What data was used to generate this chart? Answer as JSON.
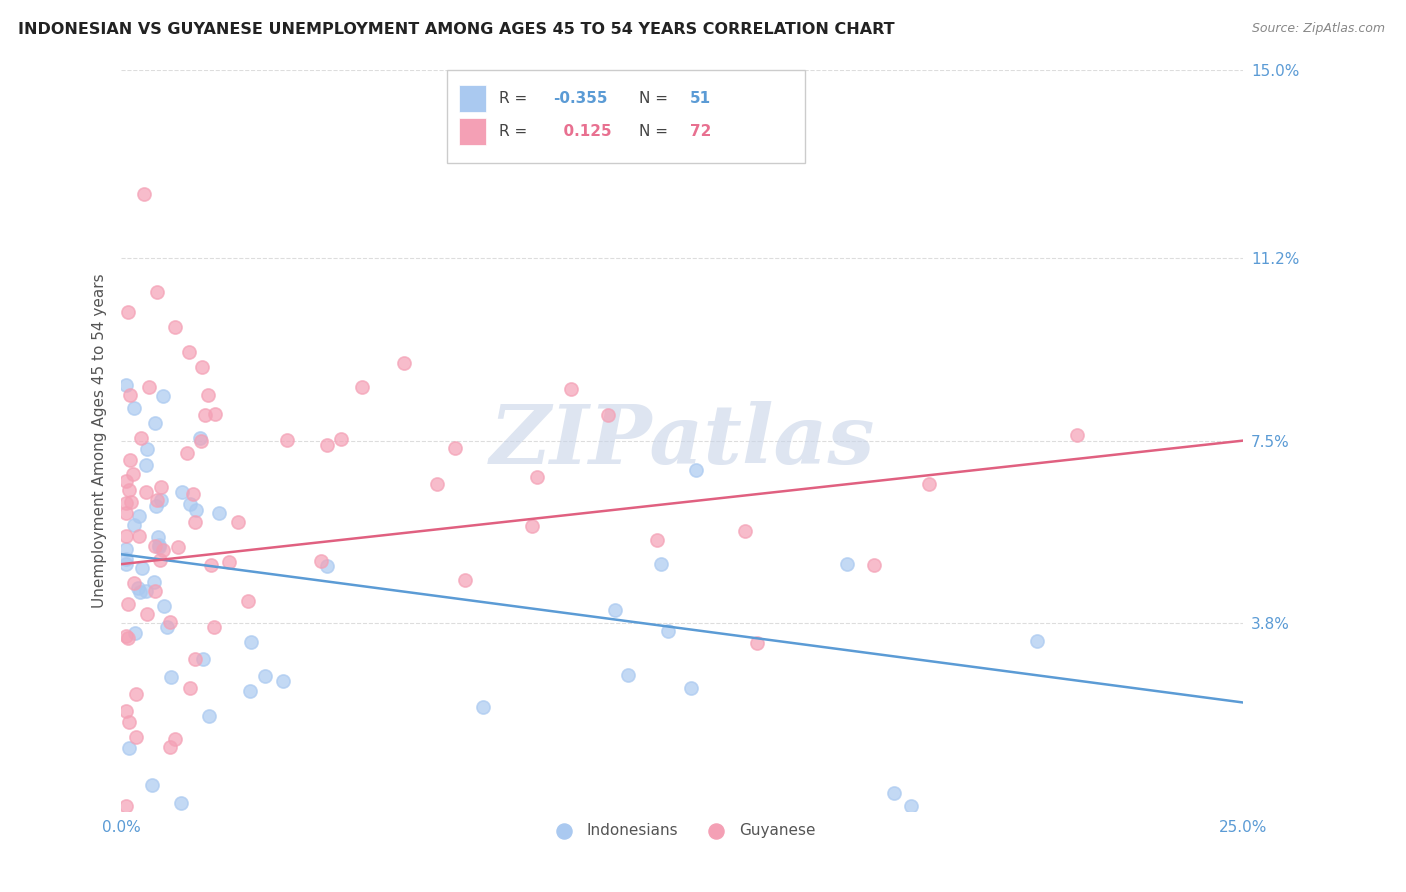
{
  "title": "INDONESIAN VS GUYANESE UNEMPLOYMENT AMONG AGES 45 TO 54 YEARS CORRELATION CHART",
  "source": "Source: ZipAtlas.com",
  "ylabel": "Unemployment Among Ages 45 to 54 years",
  "xlim": [
    0.0,
    0.25
  ],
  "ylim": [
    0.0,
    0.15
  ],
  "yticks": [
    0.038,
    0.075,
    0.112,
    0.15
  ],
  "ytick_labels": [
    "3.8%",
    "7.5%",
    "11.2%",
    "15.0%"
  ],
  "indonesian_color": "#aac9f0",
  "indonesian_line_color": "#5b9bd5",
  "guyanese_color": "#f4a0b5",
  "guyanese_line_color": "#e06080",
  "indonesian_R": -0.355,
  "indonesian_N": 51,
  "guyanese_R": 0.125,
  "guyanese_N": 72,
  "watermark_text": "ZIPatlas",
  "watermark_color": "#c8d4e8",
  "background_color": "#ffffff",
  "grid_color": "#dddddd",
  "indo_line_y0": 0.052,
  "indo_line_y1": 0.022,
  "guy_line_y0": 0.05,
  "guy_line_y1": 0.075
}
